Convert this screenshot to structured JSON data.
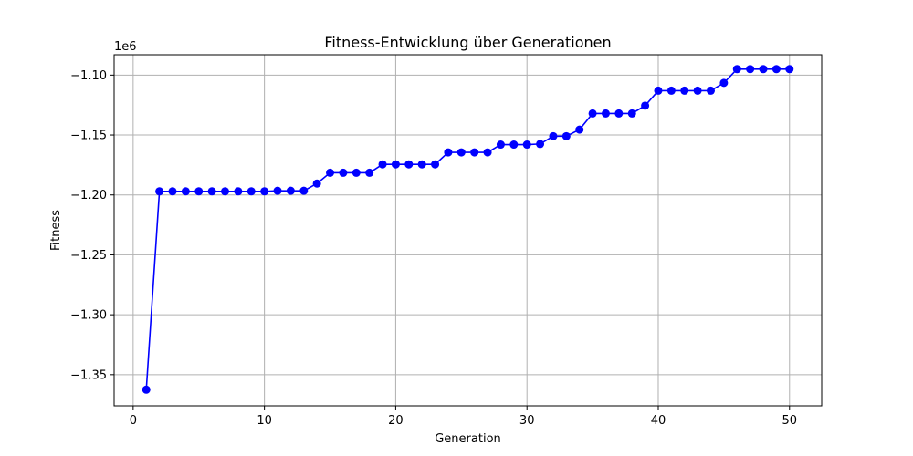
{
  "chart_data": {
    "type": "line",
    "title": "Fitness-Entwicklung über Generationen",
    "xlabel": "Generation",
    "ylabel": "Fitness",
    "y_offset_label": "1e6",
    "grid": true,
    "color": "#0000ff",
    "marker": "circle",
    "xlim": [
      -1.45,
      52.45
    ],
    "ylim": [
      -1.376,
      -1.083
    ],
    "x_ticks": [
      0,
      10,
      20,
      30,
      40,
      50
    ],
    "x_tick_labels": [
      "0",
      "10",
      "20",
      "30",
      "40",
      "50"
    ],
    "y_ticks": [
      -1.35,
      -1.3,
      -1.25,
      -1.2,
      -1.15,
      -1.1
    ],
    "y_tick_labels": [
      "−1.35",
      "−1.30",
      "−1.25",
      "−1.20",
      "−1.15",
      "−1.10"
    ],
    "series": [
      {
        "x": [
          1,
          2,
          3,
          4,
          5,
          6,
          7,
          8,
          9,
          10,
          11,
          12,
          13,
          14,
          15,
          16,
          17,
          18,
          19,
          20,
          21,
          22,
          23,
          24,
          25,
          26,
          27,
          28,
          29,
          30,
          31,
          32,
          33,
          34,
          35,
          36,
          37,
          38,
          39,
          40,
          41,
          42,
          43,
          44,
          45,
          46,
          47,
          48,
          49,
          50
        ],
        "values": [
          -1.3625,
          -1.197,
          -1.197,
          -1.197,
          -1.197,
          -1.197,
          -1.197,
          -1.197,
          -1.197,
          -1.197,
          -1.1965,
          -1.1965,
          -1.1965,
          -1.1905,
          -1.1815,
          -1.1815,
          -1.1815,
          -1.1815,
          -1.1745,
          -1.1745,
          -1.1745,
          -1.1745,
          -1.1745,
          -1.1645,
          -1.1645,
          -1.1645,
          -1.1645,
          -1.158,
          -1.158,
          -1.158,
          -1.1575,
          -1.151,
          -1.151,
          -1.1455,
          -1.132,
          -1.132,
          -1.132,
          -1.132,
          -1.1255,
          -1.113,
          -1.113,
          -1.113,
          -1.113,
          -1.113,
          -1.1065,
          -1.095,
          -1.095,
          -1.095,
          -1.095,
          -1.095
        ]
      }
    ]
  }
}
